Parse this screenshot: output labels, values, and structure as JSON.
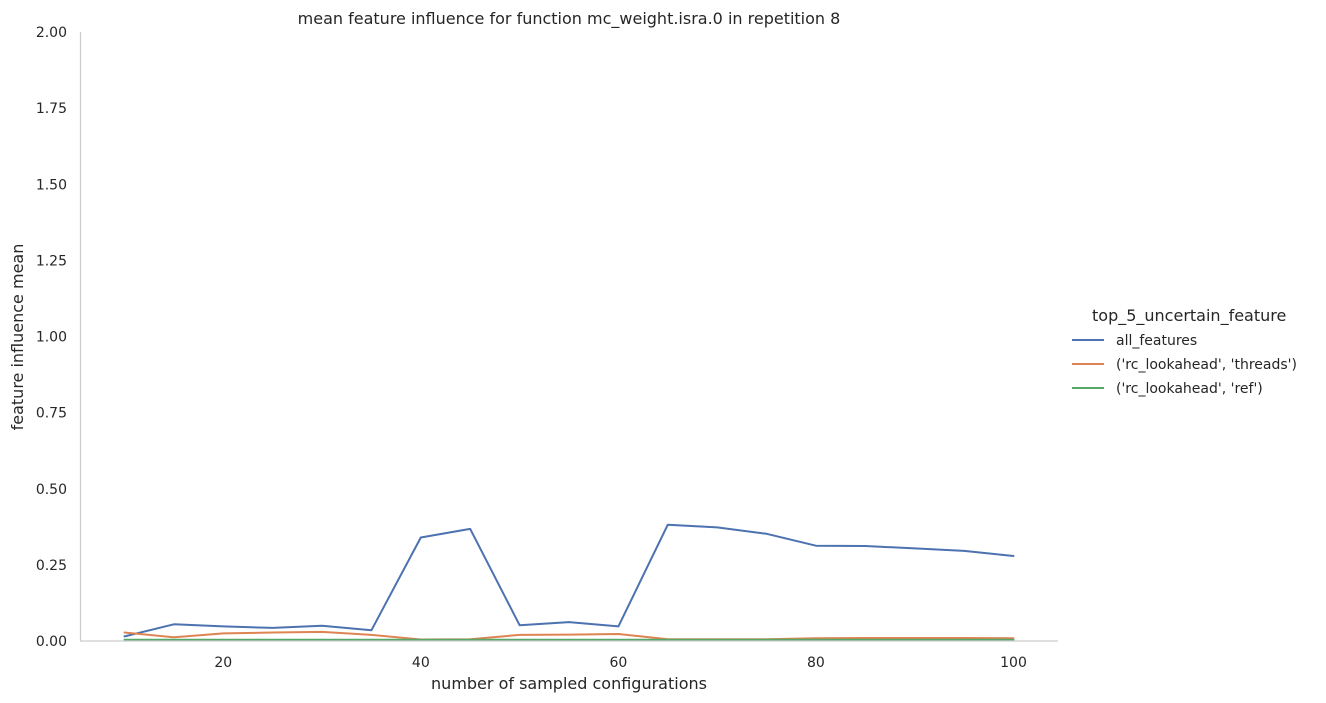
{
  "chart_data": {
    "type": "line",
    "title": "mean feature influence for function mc_weight.isra.0 in repetition 8",
    "xlabel": "number of sampled configurations",
    "ylabel": "feature influence mean",
    "xlim": [
      5,
      105
    ],
    "ylim": [
      0,
      2
    ],
    "xticks": [
      20,
      40,
      60,
      80,
      100
    ],
    "xtick_labels": [
      "20",
      "40",
      "60",
      "80",
      "100"
    ],
    "yticks": [
      0,
      0.25,
      0.5,
      0.75,
      1.0,
      1.25,
      1.5,
      1.75,
      2.0
    ],
    "ytick_labels": [
      "0.00",
      "0.25",
      "0.50",
      "0.75",
      "1.00",
      "1.25",
      "1.50",
      "1.75",
      "2.00"
    ],
    "grid": false,
    "legend": {
      "title": "top_5_uncertain_feature",
      "placement": "right"
    },
    "x": [
      10,
      15,
      20,
      25,
      30,
      35,
      40,
      45,
      50,
      55,
      60,
      65,
      70,
      75,
      80,
      85,
      90,
      95,
      100
    ],
    "series": [
      {
        "name": "all_features",
        "color": "#4c72b0",
        "values": [
          0.015,
          0.055,
          0.048,
          0.043,
          0.05,
          0.035,
          0.34,
          0.368,
          0.052,
          0.062,
          0.048,
          0.382,
          0.373,
          0.352,
          0.313,
          0.312,
          0.304,
          0.296,
          0.279
        ]
      },
      {
        "name": "('rc_lookahead', 'threads')",
        "color": "#dd8452",
        "values": [
          0.028,
          0.012,
          0.025,
          0.028,
          0.03,
          0.02,
          0.005,
          0.006,
          0.02,
          0.021,
          0.023,
          0.006,
          0.006,
          0.006,
          0.009,
          0.01,
          0.01,
          0.01,
          0.009
        ]
      },
      {
        "name": "('rc_lookahead', 'ref')",
        "color": "#55a868",
        "values": [
          0.004,
          0.004,
          0.004,
          0.004,
          0.004,
          0.004,
          0.004,
          0.004,
          0.004,
          0.004,
          0.004,
          0.004,
          0.004,
          0.004,
          0.004,
          0.004,
          0.004,
          0.004,
          0.004
        ]
      }
    ]
  }
}
